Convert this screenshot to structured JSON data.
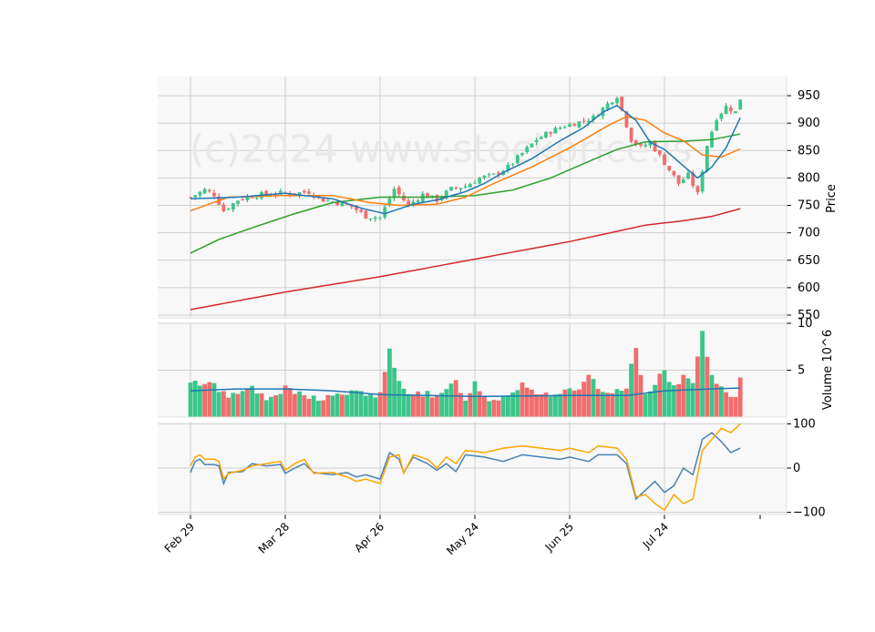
{
  "watermark": "(c)2024 www.stockprice.is",
  "colors": {
    "panel_bg": "#f8f8f8",
    "grid": "#d0d0d0",
    "up": "#26a269",
    "up_fill": "#3cc68a",
    "down": "#e64646",
    "down_fill": "#f26d6d",
    "ma_short": "#1f77b4",
    "ma_mid": "#ff7f0e",
    "ma_long": "#2ca02c",
    "ma_200": "#d62728",
    "vol_ma": "#1f77b4",
    "osc_blue": "#4682b4",
    "osc_orange": "#ffa500"
  },
  "chart_data": {
    "type": "candlestick",
    "x_ticks": [
      "Feb 29",
      "Mar 28",
      "Apr 26",
      "May 24",
      "Jun 25",
      "Jul 24"
    ],
    "x_tick_index": [
      0,
      20,
      40,
      60,
      80,
      100
    ],
    "price_panel": {
      "ylabel": "Price",
      "ylim": [
        545,
        985
      ],
      "yticks": [
        550,
        600,
        650,
        700,
        750,
        800,
        850,
        900,
        950
      ],
      "ohlc_anchor_close": [
        [
          0,
          765
        ],
        [
          3,
          778
        ],
        [
          5,
          770
        ],
        [
          7,
          740
        ],
        [
          10,
          760
        ],
        [
          13,
          768
        ],
        [
          16,
          770
        ],
        [
          19,
          772
        ],
        [
          22,
          772
        ],
        [
          25,
          775
        ],
        [
          28,
          760
        ],
        [
          31,
          755
        ],
        [
          34,
          748
        ],
        [
          37,
          730
        ],
        [
          40,
          728
        ],
        [
          43,
          780
        ],
        [
          46,
          750
        ],
        [
          49,
          770
        ],
        [
          52,
          760
        ],
        [
          55,
          780
        ],
        [
          58,
          785
        ],
        [
          61,
          800
        ],
        [
          64,
          805
        ],
        [
          67,
          820
        ],
        [
          70,
          845
        ],
        [
          73,
          870
        ],
        [
          76,
          885
        ],
        [
          79,
          895
        ],
        [
          82,
          902
        ],
        [
          85,
          910
        ],
        [
          88,
          935
        ],
        [
          90,
          950
        ],
        [
          93,
          870
        ],
        [
          95,
          855
        ],
        [
          97,
          865
        ],
        [
          99,
          840
        ],
        [
          101,
          815
        ],
        [
          103,
          790
        ],
        [
          105,
          805
        ],
        [
          107,
          770
        ],
        [
          109,
          860
        ],
        [
          111,
          910
        ],
        [
          113,
          930
        ],
        [
          115,
          920
        ],
        [
          116,
          945
        ]
      ],
      "ma_short_anchor": [
        [
          0,
          762
        ],
        [
          10,
          765
        ],
        [
          20,
          772
        ],
        [
          30,
          762
        ],
        [
          36,
          745
        ],
        [
          41,
          735
        ],
        [
          47,
          752
        ],
        [
          52,
          760
        ],
        [
          58,
          775
        ],
        [
          62,
          790
        ],
        [
          66,
          810
        ],
        [
          72,
          835
        ],
        [
          78,
          868
        ],
        [
          83,
          892
        ],
        [
          87,
          920
        ],
        [
          90,
          932
        ],
        [
          94,
          905
        ],
        [
          97,
          865
        ],
        [
          100,
          852
        ],
        [
          104,
          822
        ],
        [
          107,
          800
        ],
        [
          110,
          820
        ],
        [
          113,
          855
        ],
        [
          116,
          910
        ]
      ],
      "ma_mid_anchor": [
        [
          0,
          740
        ],
        [
          8,
          765
        ],
        [
          20,
          768
        ],
        [
          30,
          768
        ],
        [
          38,
          755
        ],
        [
          44,
          750
        ],
        [
          52,
          752
        ],
        [
          58,
          765
        ],
        [
          64,
          790
        ],
        [
          72,
          820
        ],
        [
          80,
          855
        ],
        [
          88,
          895
        ],
        [
          92,
          912
        ],
        [
          96,
          905
        ],
        [
          100,
          882
        ],
        [
          104,
          868
        ],
        [
          108,
          842
        ],
        [
          112,
          838
        ],
        [
          116,
          853
        ]
      ],
      "ma_long_anchor": [
        [
          0,
          663
        ],
        [
          6,
          688
        ],
        [
          14,
          712
        ],
        [
          22,
          735
        ],
        [
          30,
          755
        ],
        [
          40,
          765
        ],
        [
          50,
          765
        ],
        [
          60,
          768
        ],
        [
          68,
          778
        ],
        [
          76,
          800
        ],
        [
          84,
          830
        ],
        [
          90,
          852
        ],
        [
          96,
          866
        ],
        [
          104,
          867
        ],
        [
          110,
          870
        ],
        [
          116,
          880
        ]
      ],
      "ma_200_anchor": [
        [
          0,
          560
        ],
        [
          20,
          592
        ],
        [
          40,
          620
        ],
        [
          60,
          652
        ],
        [
          80,
          684
        ],
        [
          96,
          714
        ],
        [
          104,
          722
        ],
        [
          110,
          730
        ],
        [
          116,
          744
        ]
      ]
    },
    "volume_panel": {
      "ylabel": "Volume  10^6",
      "ylim": [
        0,
        10
      ],
      "yticks": [
        5,
        10
      ],
      "bars_anchor": [
        [
          0,
          3.5
        ],
        [
          4,
          3.8
        ],
        [
          8,
          2.2
        ],
        [
          12,
          3.4
        ],
        [
          16,
          1.8
        ],
        [
          20,
          3.0
        ],
        [
          24,
          2.2
        ],
        [
          28,
          2.0
        ],
        [
          32,
          2.5
        ],
        [
          36,
          2.6
        ],
        [
          40,
          2.3
        ],
        [
          42,
          7.0
        ],
        [
          44,
          3.6
        ],
        [
          46,
          2.8
        ],
        [
          50,
          2.4
        ],
        [
          52,
          2.0
        ],
        [
          54,
          2.8
        ],
        [
          56,
          3.8
        ],
        [
          58,
          2.0
        ],
        [
          60,
          3.6
        ],
        [
          62,
          2.2
        ],
        [
          64,
          1.8
        ],
        [
          68,
          2.8
        ],
        [
          70,
          3.6
        ],
        [
          74,
          2.4
        ],
        [
          78,
          2.6
        ],
        [
          82,
          2.8
        ],
        [
          84,
          4.2
        ],
        [
          88,
          2.2
        ],
        [
          92,
          3.4
        ],
        [
          94,
          7.2
        ],
        [
          96,
          2.4
        ],
        [
          98,
          3.8
        ],
        [
          100,
          5.0
        ],
        [
          102,
          3.0
        ],
        [
          104,
          4.2
        ],
        [
          106,
          4.0
        ],
        [
          108,
          9.0
        ],
        [
          109,
          6.2
        ],
        [
          111,
          3.2
        ],
        [
          113,
          2.6
        ],
        [
          115,
          1.8
        ],
        [
          116,
          4.0
        ]
      ],
      "ma_anchor": [
        [
          0,
          2.8
        ],
        [
          10,
          3.0
        ],
        [
          20,
          3.0
        ],
        [
          30,
          2.8
        ],
        [
          40,
          2.4
        ],
        [
          60,
          2.2
        ],
        [
          80,
          2.3
        ],
        [
          92,
          2.3
        ],
        [
          100,
          2.8
        ],
        [
          110,
          3.0
        ],
        [
          116,
          3.1
        ]
      ]
    },
    "oscillator_panel": {
      "ylim": [
        -105,
        105
      ],
      "yticks": [
        -100,
        0,
        100
      ],
      "blue_anchor": [
        [
          0,
          -10
        ],
        [
          1,
          15
        ],
        [
          2,
          20
        ],
        [
          3,
          8
        ],
        [
          5,
          8
        ],
        [
          6,
          5
        ],
        [
          7,
          -35
        ],
        [
          8,
          -10
        ],
        [
          11,
          -8
        ],
        [
          13,
          10
        ],
        [
          16,
          5
        ],
        [
          19,
          8
        ],
        [
          20,
          -12
        ],
        [
          22,
          0
        ],
        [
          24,
          10
        ],
        [
          26,
          -10
        ],
        [
          30,
          -15
        ],
        [
          33,
          -10
        ],
        [
          35,
          -20
        ],
        [
          37,
          -15
        ],
        [
          40,
          -25
        ],
        [
          42,
          35
        ],
        [
          44,
          20
        ],
        [
          45,
          -10
        ],
        [
          47,
          25
        ],
        [
          50,
          10
        ],
        [
          52,
          -5
        ],
        [
          54,
          10
        ],
        [
          56,
          -8
        ],
        [
          58,
          30
        ],
        [
          62,
          25
        ],
        [
          66,
          15
        ],
        [
          70,
          30
        ],
        [
          74,
          25
        ],
        [
          78,
          20
        ],
        [
          80,
          25
        ],
        [
          84,
          15
        ],
        [
          86,
          30
        ],
        [
          90,
          30
        ],
        [
          92,
          10
        ],
        [
          94,
          -70
        ],
        [
          96,
          -50
        ],
        [
          98,
          -30
        ],
        [
          100,
          -55
        ],
        [
          102,
          -40
        ],
        [
          104,
          0
        ],
        [
          106,
          -15
        ],
        [
          108,
          65
        ],
        [
          110,
          80
        ],
        [
          112,
          60
        ],
        [
          114,
          35
        ],
        [
          116,
          45
        ]
      ],
      "orange_anchor": [
        [
          0,
          5
        ],
        [
          1,
          25
        ],
        [
          2,
          30
        ],
        [
          3,
          20
        ],
        [
          5,
          20
        ],
        [
          6,
          15
        ],
        [
          7,
          -25
        ],
        [
          8,
          -12
        ],
        [
          11,
          -5
        ],
        [
          13,
          5
        ],
        [
          16,
          10
        ],
        [
          19,
          15
        ],
        [
          20,
          -5
        ],
        [
          22,
          10
        ],
        [
          24,
          20
        ],
        [
          26,
          -12
        ],
        [
          30,
          -10
        ],
        [
          33,
          -20
        ],
        [
          35,
          -30
        ],
        [
          37,
          -25
        ],
        [
          40,
          -35
        ],
        [
          42,
          25
        ],
        [
          44,
          30
        ],
        [
          45,
          -12
        ],
        [
          47,
          30
        ],
        [
          50,
          20
        ],
        [
          52,
          0
        ],
        [
          54,
          25
        ],
        [
          56,
          10
        ],
        [
          58,
          40
        ],
        [
          62,
          35
        ],
        [
          66,
          45
        ],
        [
          70,
          50
        ],
        [
          74,
          45
        ],
        [
          78,
          40
        ],
        [
          80,
          45
        ],
        [
          84,
          35
        ],
        [
          86,
          50
        ],
        [
          90,
          45
        ],
        [
          92,
          20
        ],
        [
          94,
          -65
        ],
        [
          96,
          -60
        ],
        [
          98,
          -80
        ],
        [
          100,
          -95
        ],
        [
          102,
          -60
        ],
        [
          104,
          -80
        ],
        [
          106,
          -70
        ],
        [
          108,
          40
        ],
        [
          110,
          65
        ],
        [
          112,
          90
        ],
        [
          114,
          80
        ],
        [
          116,
          100
        ]
      ]
    }
  }
}
